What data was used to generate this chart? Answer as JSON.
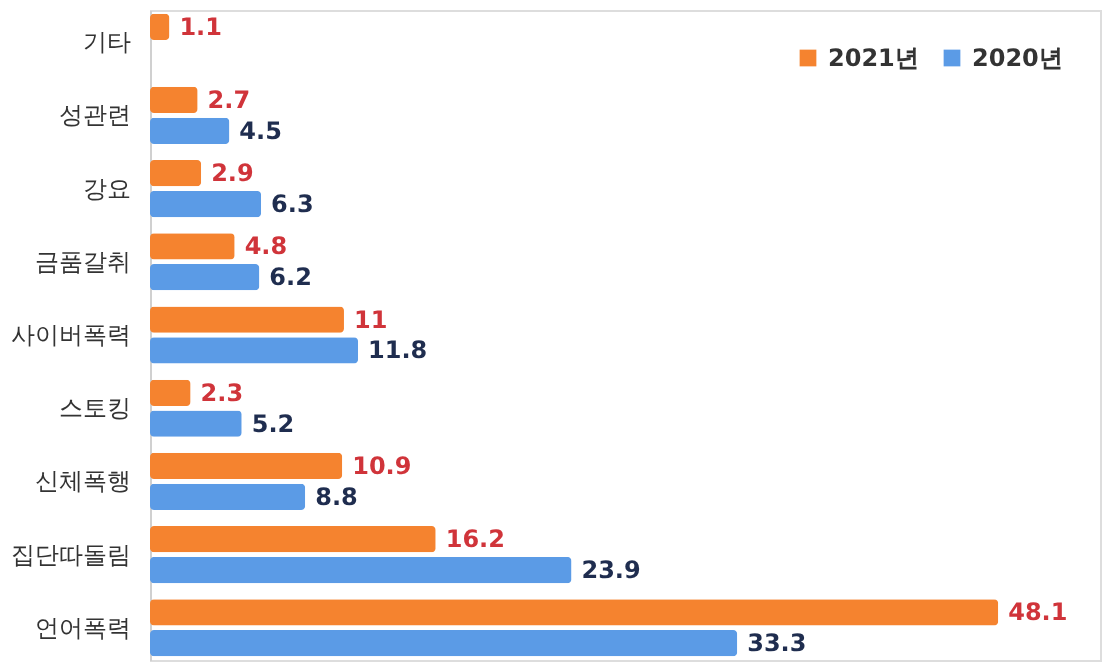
{
  "chart_data": {
    "type": "bar",
    "orientation": "horizontal",
    "categories": [
      "기타",
      "성관련",
      "강요",
      "금품갈취",
      "사이버폭력",
      "스토킹",
      "신체폭행",
      "집단따돌림",
      "언어폭력"
    ],
    "series": [
      {
        "name": "2021년",
        "color": "#f5832f",
        "values": [
          1.1,
          2.7,
          2.9,
          4.8,
          11,
          2.3,
          10.9,
          16.2,
          48.1
        ]
      },
      {
        "name": "2020년",
        "color": "#5b9be6",
        "values": [
          null,
          4.5,
          6.3,
          6.2,
          11.8,
          5.2,
          8.8,
          23.9,
          33.3
        ]
      }
    ],
    "data_labels": true,
    "legend": "top right",
    "grid": false
  }
}
